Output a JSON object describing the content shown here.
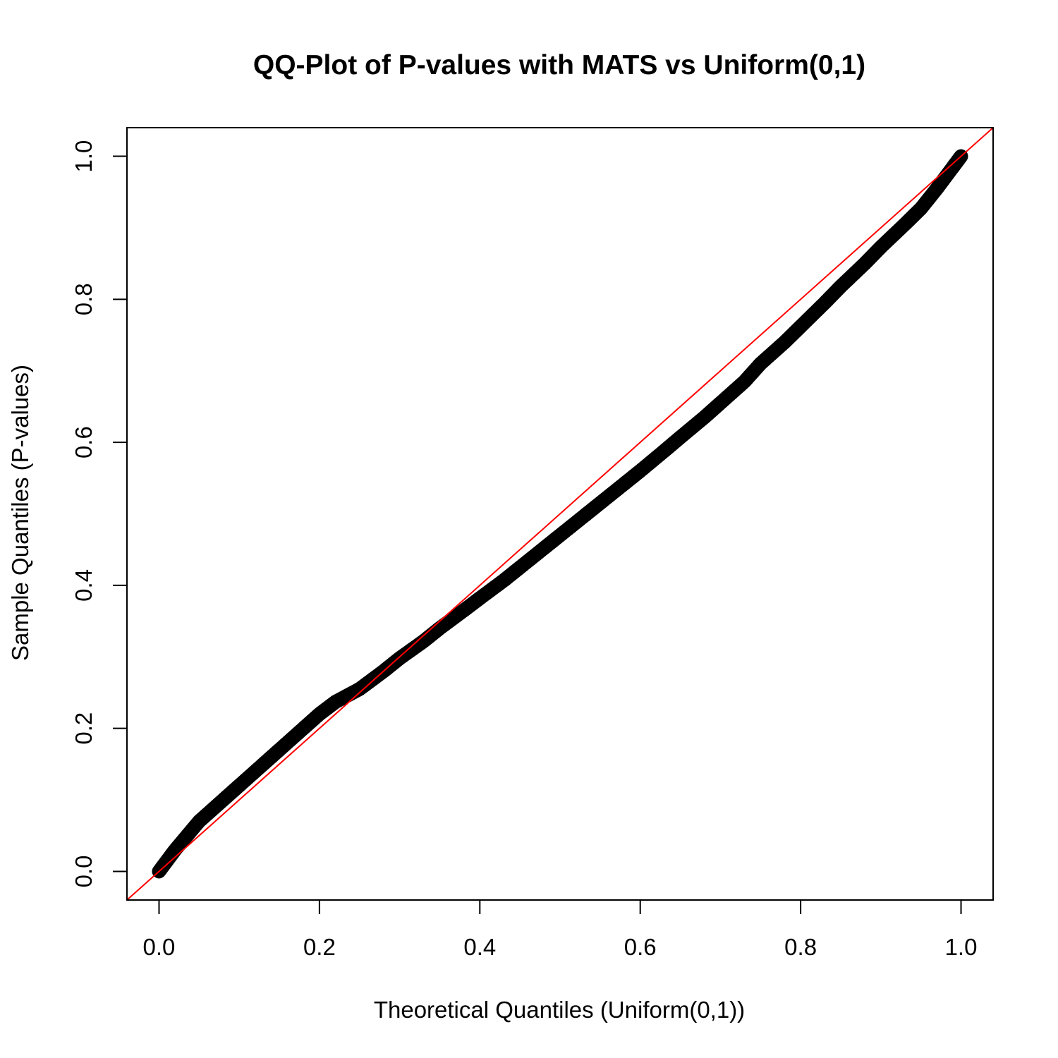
{
  "chart_data": {
    "type": "scatter",
    "title": "QQ-Plot of P-values with MATS vs Uniform(0,1)",
    "xlabel": "Theoretical Quantiles (Uniform(0,1))",
    "ylabel": "Sample Quantiles (P-values)",
    "xlim": [
      -0.04,
      1.04
    ],
    "ylim": [
      -0.04,
      1.04
    ],
    "x_ticks": [
      "0.0",
      "0.2",
      "0.4",
      "0.6",
      "0.8",
      "1.0"
    ],
    "y_ticks": [
      "0.0",
      "0.2",
      "0.4",
      "0.6",
      "0.8",
      "1.0"
    ],
    "grid": false,
    "legend": "none",
    "reference_line": {
      "slope": 1,
      "intercept": 0,
      "color": "#ff0000"
    },
    "point_color": "#000000",
    "series": [
      {
        "x": [
          0.0,
          0.02,
          0.05,
          0.08,
          0.1,
          0.13,
          0.15,
          0.18,
          0.2,
          0.22,
          0.25,
          0.28,
          0.3,
          0.33,
          0.35,
          0.38,
          0.4,
          0.43,
          0.45,
          0.48,
          0.5,
          0.53,
          0.55,
          0.58,
          0.6,
          0.63,
          0.65,
          0.68,
          0.7,
          0.73,
          0.75,
          0.78,
          0.8,
          0.83,
          0.85,
          0.88,
          0.9,
          0.93,
          0.95,
          0.97,
          0.99,
          1.0
        ],
        "y": [
          0.0,
          0.03,
          0.07,
          0.1,
          0.12,
          0.15,
          0.17,
          0.2,
          0.22,
          0.237,
          0.255,
          0.28,
          0.298,
          0.322,
          0.34,
          0.365,
          0.382,
          0.407,
          0.425,
          0.452,
          0.47,
          0.497,
          0.515,
          0.542,
          0.56,
          0.588,
          0.607,
          0.635,
          0.655,
          0.685,
          0.71,
          0.74,
          0.762,
          0.795,
          0.818,
          0.85,
          0.873,
          0.905,
          0.927,
          0.955,
          0.985,
          1.0
        ]
      }
    ]
  }
}
